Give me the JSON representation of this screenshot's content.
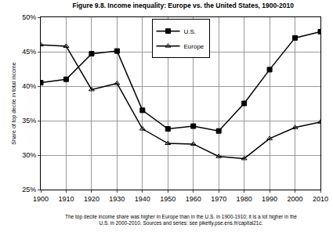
{
  "chart_data": {
    "type": "line",
    "title": "Figure 9.8. Income inequality: Europe vs. the United States, 1900-2010",
    "y_label": "Share of top decile in total income",
    "caption": [
      "The top decile income share was higher in Europe than in the U.S. in 1900-1910; it is a lot higher in the",
      "U.S. in 2000-2010. Sources and series: see piketty.pse.ens.fr/capital21c."
    ],
    "x": [
      1900,
      1910,
      1920,
      1930,
      1940,
      1950,
      1960,
      1970,
      1980,
      1990,
      2000,
      2010
    ],
    "series": [
      {
        "name": "U.S.",
        "color": "#000000",
        "marker": "square",
        "line_style": "solid",
        "values": [
          40.5,
          41,
          44.7,
          45.1,
          36.5,
          33.8,
          34.2,
          33.5,
          37.5,
          42.4,
          47,
          47.9
        ]
      },
      {
        "name": "Europe",
        "color": "#000000",
        "marker": "triangle-up-open",
        "line_style": "solid",
        "values": [
          46,
          45.8,
          39.5,
          40.4,
          33.8,
          31.7,
          31.6,
          29.8,
          29.5,
          32.4,
          34,
          34.8
        ]
      }
    ],
    "xlim": [
      1900,
      2010
    ],
    "xticks": [
      1900,
      1910,
      1920,
      1930,
      1940,
      1950,
      1960,
      1970,
      1980,
      1990,
      2000,
      2010
    ],
    "ylim": [
      25,
      50
    ],
    "yticks": [
      {
        "value": 25,
        "label": "25%"
      },
      {
        "value": 30,
        "label": "30%"
      },
      {
        "value": 35,
        "label": "35%"
      },
      {
        "value": 40,
        "label": "40%"
      },
      {
        "value": 45,
        "label": "45%"
      },
      {
        "value": 50,
        "label": "50%"
      }
    ],
    "grid": true,
    "legend": "upper center"
  }
}
